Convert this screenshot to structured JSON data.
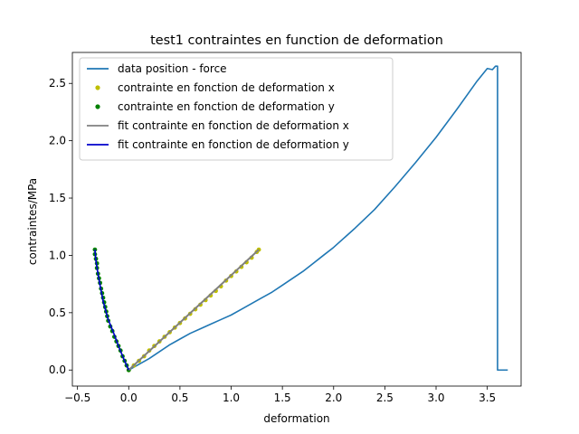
{
  "chart_data": {
    "type": "line",
    "title": "test1 contraintes en function de deformation",
    "xlabel": "deformation",
    "ylabel": "contraintes/MPa",
    "xlim": [
      -0.55,
      3.83
    ],
    "ylim": [
      -0.14,
      2.77
    ],
    "xticks": [
      -0.5,
      0.0,
      0.5,
      1.0,
      1.5,
      2.0,
      2.5,
      3.0,
      3.5
    ],
    "xtick_labels": [
      "−0.5",
      "0.0",
      "0.5",
      "1.0",
      "1.5",
      "2.0",
      "2.5",
      "3.0",
      "3.5"
    ],
    "yticks": [
      0.0,
      0.5,
      1.0,
      1.5,
      2.0,
      2.5
    ],
    "ytick_labels": [
      "0.0",
      "0.5",
      "1.0",
      "1.5",
      "2.0",
      "2.5"
    ],
    "grid": false,
    "legend_position": "top-left",
    "series": [
      {
        "name": "data position - force",
        "kind": "line",
        "color": "#1f77b4",
        "x": [
          0.0,
          0.1,
          0.2,
          0.3,
          0.4,
          0.5,
          0.6,
          0.7,
          0.8,
          0.9,
          1.0,
          1.1,
          1.2,
          1.3,
          1.4,
          1.5,
          1.6,
          1.7,
          1.8,
          1.9,
          2.0,
          2.2,
          2.4,
          2.6,
          2.8,
          3.0,
          3.2,
          3.4,
          3.5,
          3.55,
          3.58,
          3.6,
          3.6,
          3.62,
          3.7
        ],
        "y": [
          0.0,
          0.05,
          0.1,
          0.16,
          0.22,
          0.27,
          0.32,
          0.36,
          0.4,
          0.44,
          0.48,
          0.53,
          0.58,
          0.63,
          0.68,
          0.74,
          0.8,
          0.86,
          0.93,
          1.0,
          1.07,
          1.23,
          1.4,
          1.6,
          1.81,
          2.03,
          2.27,
          2.52,
          2.63,
          2.62,
          2.65,
          2.65,
          0.0,
          0.0,
          0.0
        ]
      },
      {
        "name": "contrainte en fonction de deformation x",
        "kind": "scatter",
        "color": "#bfbf00",
        "x": [
          0.0,
          0.05,
          0.1,
          0.15,
          0.2,
          0.25,
          0.3,
          0.35,
          0.4,
          0.45,
          0.5,
          0.55,
          0.6,
          0.65,
          0.7,
          0.75,
          0.8,
          0.85,
          0.9,
          0.95,
          1.0,
          1.05,
          1.1,
          1.15,
          1.2,
          1.25,
          1.27
        ],
        "y": [
          0.0,
          0.04,
          0.08,
          0.12,
          0.17,
          0.21,
          0.25,
          0.29,
          0.33,
          0.37,
          0.41,
          0.45,
          0.49,
          0.53,
          0.57,
          0.61,
          0.65,
          0.69,
          0.73,
          0.78,
          0.82,
          0.86,
          0.9,
          0.94,
          0.98,
          1.03,
          1.05
        ]
      },
      {
        "name": "contrainte en fonction de deformation y",
        "kind": "scatter",
        "color": "#008000",
        "x": [
          0.0,
          -0.02,
          -0.04,
          -0.06,
          -0.08,
          -0.1,
          -0.12,
          -0.14,
          -0.16,
          -0.18,
          -0.2,
          -0.21,
          -0.22,
          -0.23,
          -0.24,
          -0.25,
          -0.26,
          -0.27,
          -0.28,
          -0.29,
          -0.3,
          -0.31,
          -0.31,
          -0.32,
          -0.33,
          -0.33
        ],
        "y": [
          0.0,
          0.04,
          0.08,
          0.12,
          0.17,
          0.21,
          0.25,
          0.29,
          0.34,
          0.38,
          0.43,
          0.47,
          0.51,
          0.55,
          0.59,
          0.63,
          0.67,
          0.71,
          0.76,
          0.8,
          0.84,
          0.89,
          0.93,
          0.97,
          1.01,
          1.05
        ]
      },
      {
        "name": "fit contrainte en fonction de deformation x",
        "kind": "line",
        "color": "#808080",
        "x": [
          0.0,
          1.27
        ],
        "y": [
          0.0,
          1.05
        ]
      },
      {
        "name": "fit contrainte en fonction de deformation y",
        "kind": "line",
        "color": "#0000cc",
        "x": [
          0.0,
          -0.05,
          -0.1,
          -0.15,
          -0.2,
          -0.25,
          -0.28,
          -0.3,
          -0.32,
          -0.33
        ],
        "y": [
          0.0,
          0.1,
          0.21,
          0.33,
          0.44,
          0.6,
          0.74,
          0.84,
          0.95,
          1.05
        ]
      }
    ]
  }
}
